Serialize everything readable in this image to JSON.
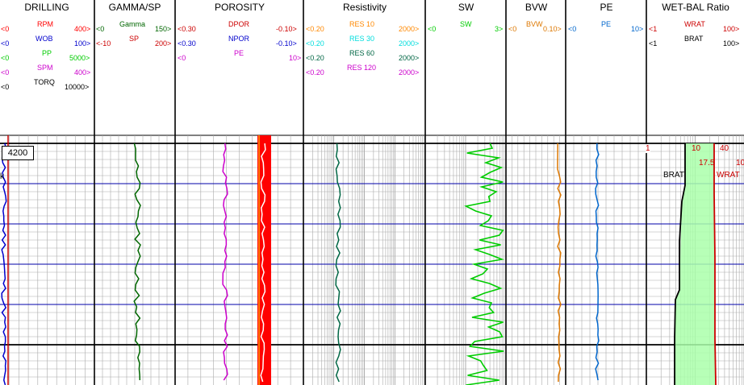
{
  "tracks": [
    {
      "id": "drilling",
      "title": "DRILLING",
      "curves": [
        {
          "name": "RPM",
          "left": "<0",
          "right": "400>",
          "color": "#ff0000"
        },
        {
          "name": "WOB",
          "left": "<0",
          "right": "100>",
          "color": "#0000cc"
        },
        {
          "name": "PP",
          "left": "<0",
          "right": "5000>",
          "color": "#00cc00"
        },
        {
          "name": "SPM",
          "left": "<0",
          "right": "400>",
          "color": "#cc00cc"
        },
        {
          "name": "TORQ",
          "left": "<0",
          "right": "10000>",
          "color": "#000000"
        }
      ]
    },
    {
      "id": "gamma",
      "title": "GAMMA/SP",
      "curves": [
        {
          "name": "Gamma",
          "left": "<0",
          "right": "150>",
          "color": "#006600"
        },
        {
          "name": "SP",
          "left": "<-10",
          "right": "200>",
          "color": "#cc0000"
        }
      ]
    },
    {
      "id": "porosity",
      "title": "POROSITY",
      "curves": [
        {
          "name": "DPOR",
          "left": "<0.30",
          "right": "-0.10>",
          "color": "#cc0000"
        },
        {
          "name": "NPOR",
          "left": "<0.30",
          "right": "-0.10>",
          "color": "#0000cc"
        },
        {
          "name": "PE",
          "left": "<0",
          "right": "10>",
          "color": "#cc00cc"
        }
      ]
    },
    {
      "id": "resistivity",
      "title": "Resistivity",
      "curves": [
        {
          "name": "RES 10",
          "left": "<0.20",
          "right": "2000>",
          "color": "#ff8800"
        },
        {
          "name": "RES 30",
          "left": "<0.20",
          "right": "2000>",
          "color": "#00dddd"
        },
        {
          "name": "RES 60",
          "left": "<0.20",
          "right": "2000>",
          "color": "#006644"
        },
        {
          "name": "RES 120",
          "left": "<0.20",
          "right": "2000>",
          "color": "#cc00cc"
        }
      ]
    },
    {
      "id": "sw",
      "title": "SW",
      "curves": [
        {
          "name": "SW",
          "left": "<0",
          "right": "3>",
          "color": "#00cc00"
        }
      ]
    },
    {
      "id": "bvw",
      "title": "BVW",
      "curves": [
        {
          "name": "BVW",
          "left": "<0",
          "right": "0.10>",
          "color": "#dd7700"
        }
      ]
    },
    {
      "id": "pe",
      "title": "PE",
      "curves": [
        {
          "name": "PE",
          "left": "<0",
          "right": "10>",
          "color": "#0066cc"
        }
      ]
    },
    {
      "id": "wetbal",
      "title": "WET-BAL Ratio",
      "curves": [
        {
          "name": "WRAT",
          "left": "<1",
          "right": "100>",
          "color": "#cc0000"
        },
        {
          "name": "BRAT",
          "left": "<1",
          "right": "100>",
          "color": "#000000"
        }
      ]
    }
  ],
  "depth_label": "4200",
  "drilling_marker": "k",
  "wetbal_annotations": {
    "left_tick": "1",
    "v10": "10",
    "v40": "40",
    "v17_5": "17.5",
    "v10b": "10",
    "brat": "BRAT",
    "wrat": "WRAT"
  }
}
